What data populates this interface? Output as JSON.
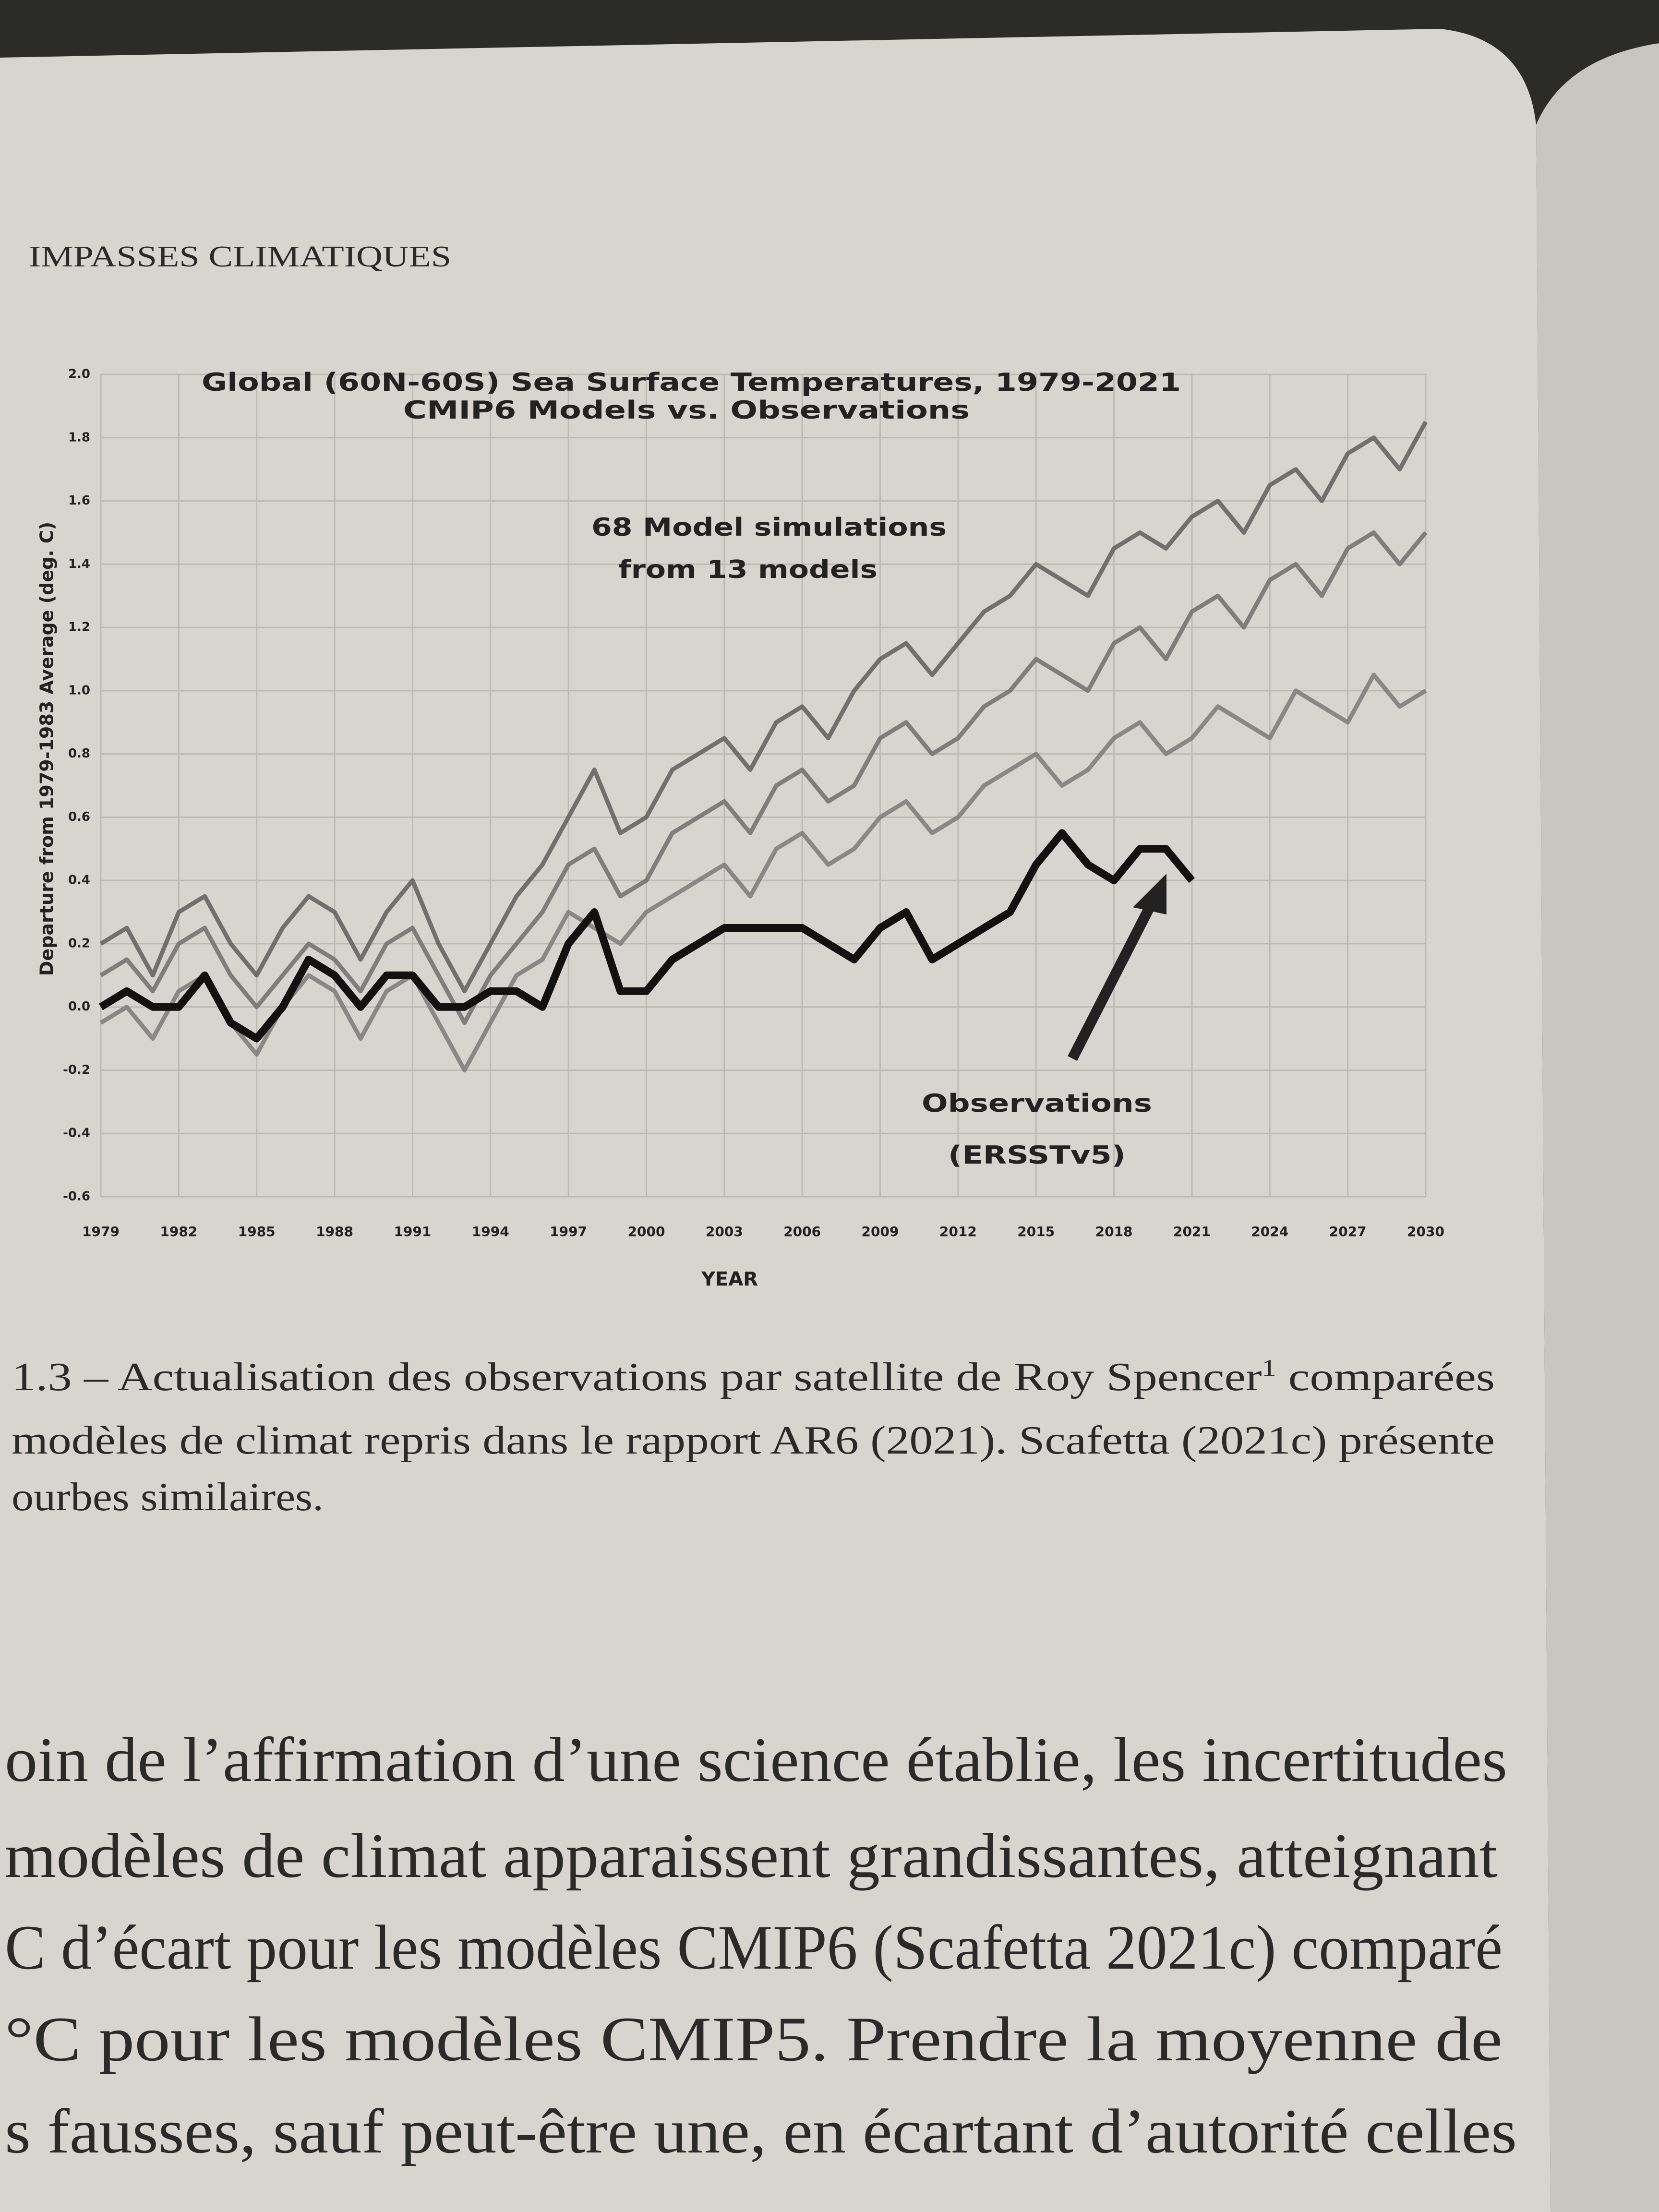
{
  "running_head": "IMPASSES CLIMATIQUES",
  "chart_data": {
    "type": "line",
    "title": "Global (60N-60S) Sea Surface Temperatures, 1979-2021",
    "subtitle": "CMIP6 Models vs. Observations",
    "y_label": "Departure from 1979-1983 Average (deg. C)",
    "x_label": "YEAR",
    "annotations": [
      "68 Model simulations",
      "from 13 models",
      "Observations",
      "(ERSSTv5)"
    ],
    "grid": true,
    "xlim": [
      1979,
      2030
    ],
    "xticks": [
      1979,
      1982,
      1985,
      1988,
      1991,
      1994,
      1997,
      2000,
      2003,
      2006,
      2009,
      2012,
      2015,
      2018,
      2021,
      2024,
      2027,
      2030
    ],
    "ylim": [
      -0.6,
      2.0
    ],
    "yticks": [
      {
        "value": 2,
        "label": "2.0"
      },
      1.8,
      1.6,
      1.4,
      1.2,
      {
        "value": 1,
        "label": "1.0"
      },
      0.8,
      0.6,
      0.4,
      0.2,
      {
        "value": 0,
        "label": "0.0"
      },
      -0.2,
      -0.4,
      -0.6
    ],
    "x": [
      1979,
      1980,
      1981,
      1982,
      1983,
      1984,
      1985,
      1986,
      1987,
      1988,
      1989,
      1990,
      1991,
      1992,
      1993,
      1994,
      1995,
      1996,
      1997,
      1998,
      1999,
      2000,
      2001,
      2002,
      2003,
      2004,
      2005,
      2006,
      2007,
      2008,
      2009,
      2010,
      2011,
      2012,
      2013,
      2014,
      2015,
      2016,
      2017,
      2018,
      2019,
      2020,
      2021,
      2022,
      2023,
      2024,
      2025,
      2026,
      2027,
      2028,
      2029,
      2030
    ],
    "series": [
      {
        "color": "#6e6e6e",
        "values": [
          0.1,
          0.15,
          0.05,
          0.2,
          0.25,
          0.1,
          0.0,
          0.1,
          0.2,
          0.15,
          0.05,
          0.2,
          0.25,
          0.1,
          -0.05,
          0.1,
          0.2,
          0.3,
          0.45,
          0.5,
          0.35,
          0.4,
          0.55,
          0.6,
          0.65,
          0.55,
          0.7,
          0.75,
          0.65,
          0.7,
          0.85,
          0.9,
          0.8,
          0.85,
          0.95,
          1.0,
          1.1,
          1.05,
          1.0,
          1.15,
          1.2,
          1.1,
          1.25,
          1.3,
          1.2,
          1.35,
          1.4,
          1.3,
          1.45,
          1.5,
          1.4,
          1.5
        ]
      },
      {
        "color": "#7a7a7a",
        "values": [
          -0.05,
          0.0,
          -0.1,
          0.05,
          0.1,
          -0.05,
          -0.15,
          0.0,
          0.1,
          0.05,
          -0.1,
          0.05,
          0.1,
          -0.05,
          -0.2,
          -0.05,
          0.1,
          0.15,
          0.3,
          0.25,
          0.2,
          0.3,
          0.35,
          0.4,
          0.45,
          0.35,
          0.5,
          0.55,
          0.45,
          0.5,
          0.6,
          0.65,
          0.55,
          0.6,
          0.7,
          0.75,
          0.8,
          0.7,
          0.75,
          0.85,
          0.9,
          0.8,
          0.85,
          0.95,
          0.9,
          0.85,
          1.0,
          0.95,
          0.9,
          1.05,
          0.95,
          1.0
        ]
      },
      {
        "color": "#5e5e5e",
        "values": [
          0.2,
          0.25,
          0.1,
          0.3,
          0.35,
          0.2,
          0.1,
          0.25,
          0.35,
          0.3,
          0.15,
          0.3,
          0.4,
          0.2,
          0.05,
          0.2,
          0.35,
          0.45,
          0.6,
          0.75,
          0.55,
          0.6,
          0.75,
          0.8,
          0.85,
          0.75,
          0.9,
          0.95,
          0.85,
          1.0,
          1.1,
          1.15,
          1.05,
          1.15,
          1.25,
          1.3,
          1.4,
          1.35,
          1.3,
          1.45,
          1.5,
          1.45,
          1.55,
          1.6,
          1.5,
          1.65,
          1.7,
          1.6,
          1.75,
          1.8,
          1.7,
          1.85
        ]
      },
      {
        "color": "#111111",
        "values": [
          0.0,
          0.05,
          0.0,
          0.0,
          0.1,
          -0.05,
          -0.1,
          0.0,
          0.15,
          0.1,
          0.0,
          0.1,
          0.1,
          0.0,
          0.0,
          0.05,
          0.05,
          0.0,
          0.2,
          0.3,
          0.05,
          0.05,
          0.15,
          0.2,
          0.25,
          0.25,
          0.25,
          0.25,
          0.2,
          0.15,
          0.25,
          0.3,
          0.15,
          0.2,
          0.25,
          0.3,
          0.45,
          0.55,
          0.45,
          0.4,
          0.5,
          0.5,
          0.4,
          null,
          null,
          null,
          null,
          null,
          null,
          null,
          null,
          null
        ]
      }
    ]
  },
  "caption": [
    [
      "1.3 – Actualisation des observations par satellite de Roy Spencer",
      "1",
      " comparées"
    ],
    [
      "modèles de climat repris dans le rapport AR6 (2021). Scafetta (2021c) présente"
    ],
    [
      "ourbes similaires."
    ]
  ],
  "body": [
    "oin de l’affirmation d’une science établie, les incertitudes",
    "modèles de climat apparaissent grandissantes, atteignant",
    "C d’écart pour les modèles CMIP6 (Scafetta 2021c) comparé",
    "°C pour les modèles CMIP5. Prendre la moyenne de",
    "s fausses, sauf peut-être une, en écartant d’autorité celles"
  ]
}
